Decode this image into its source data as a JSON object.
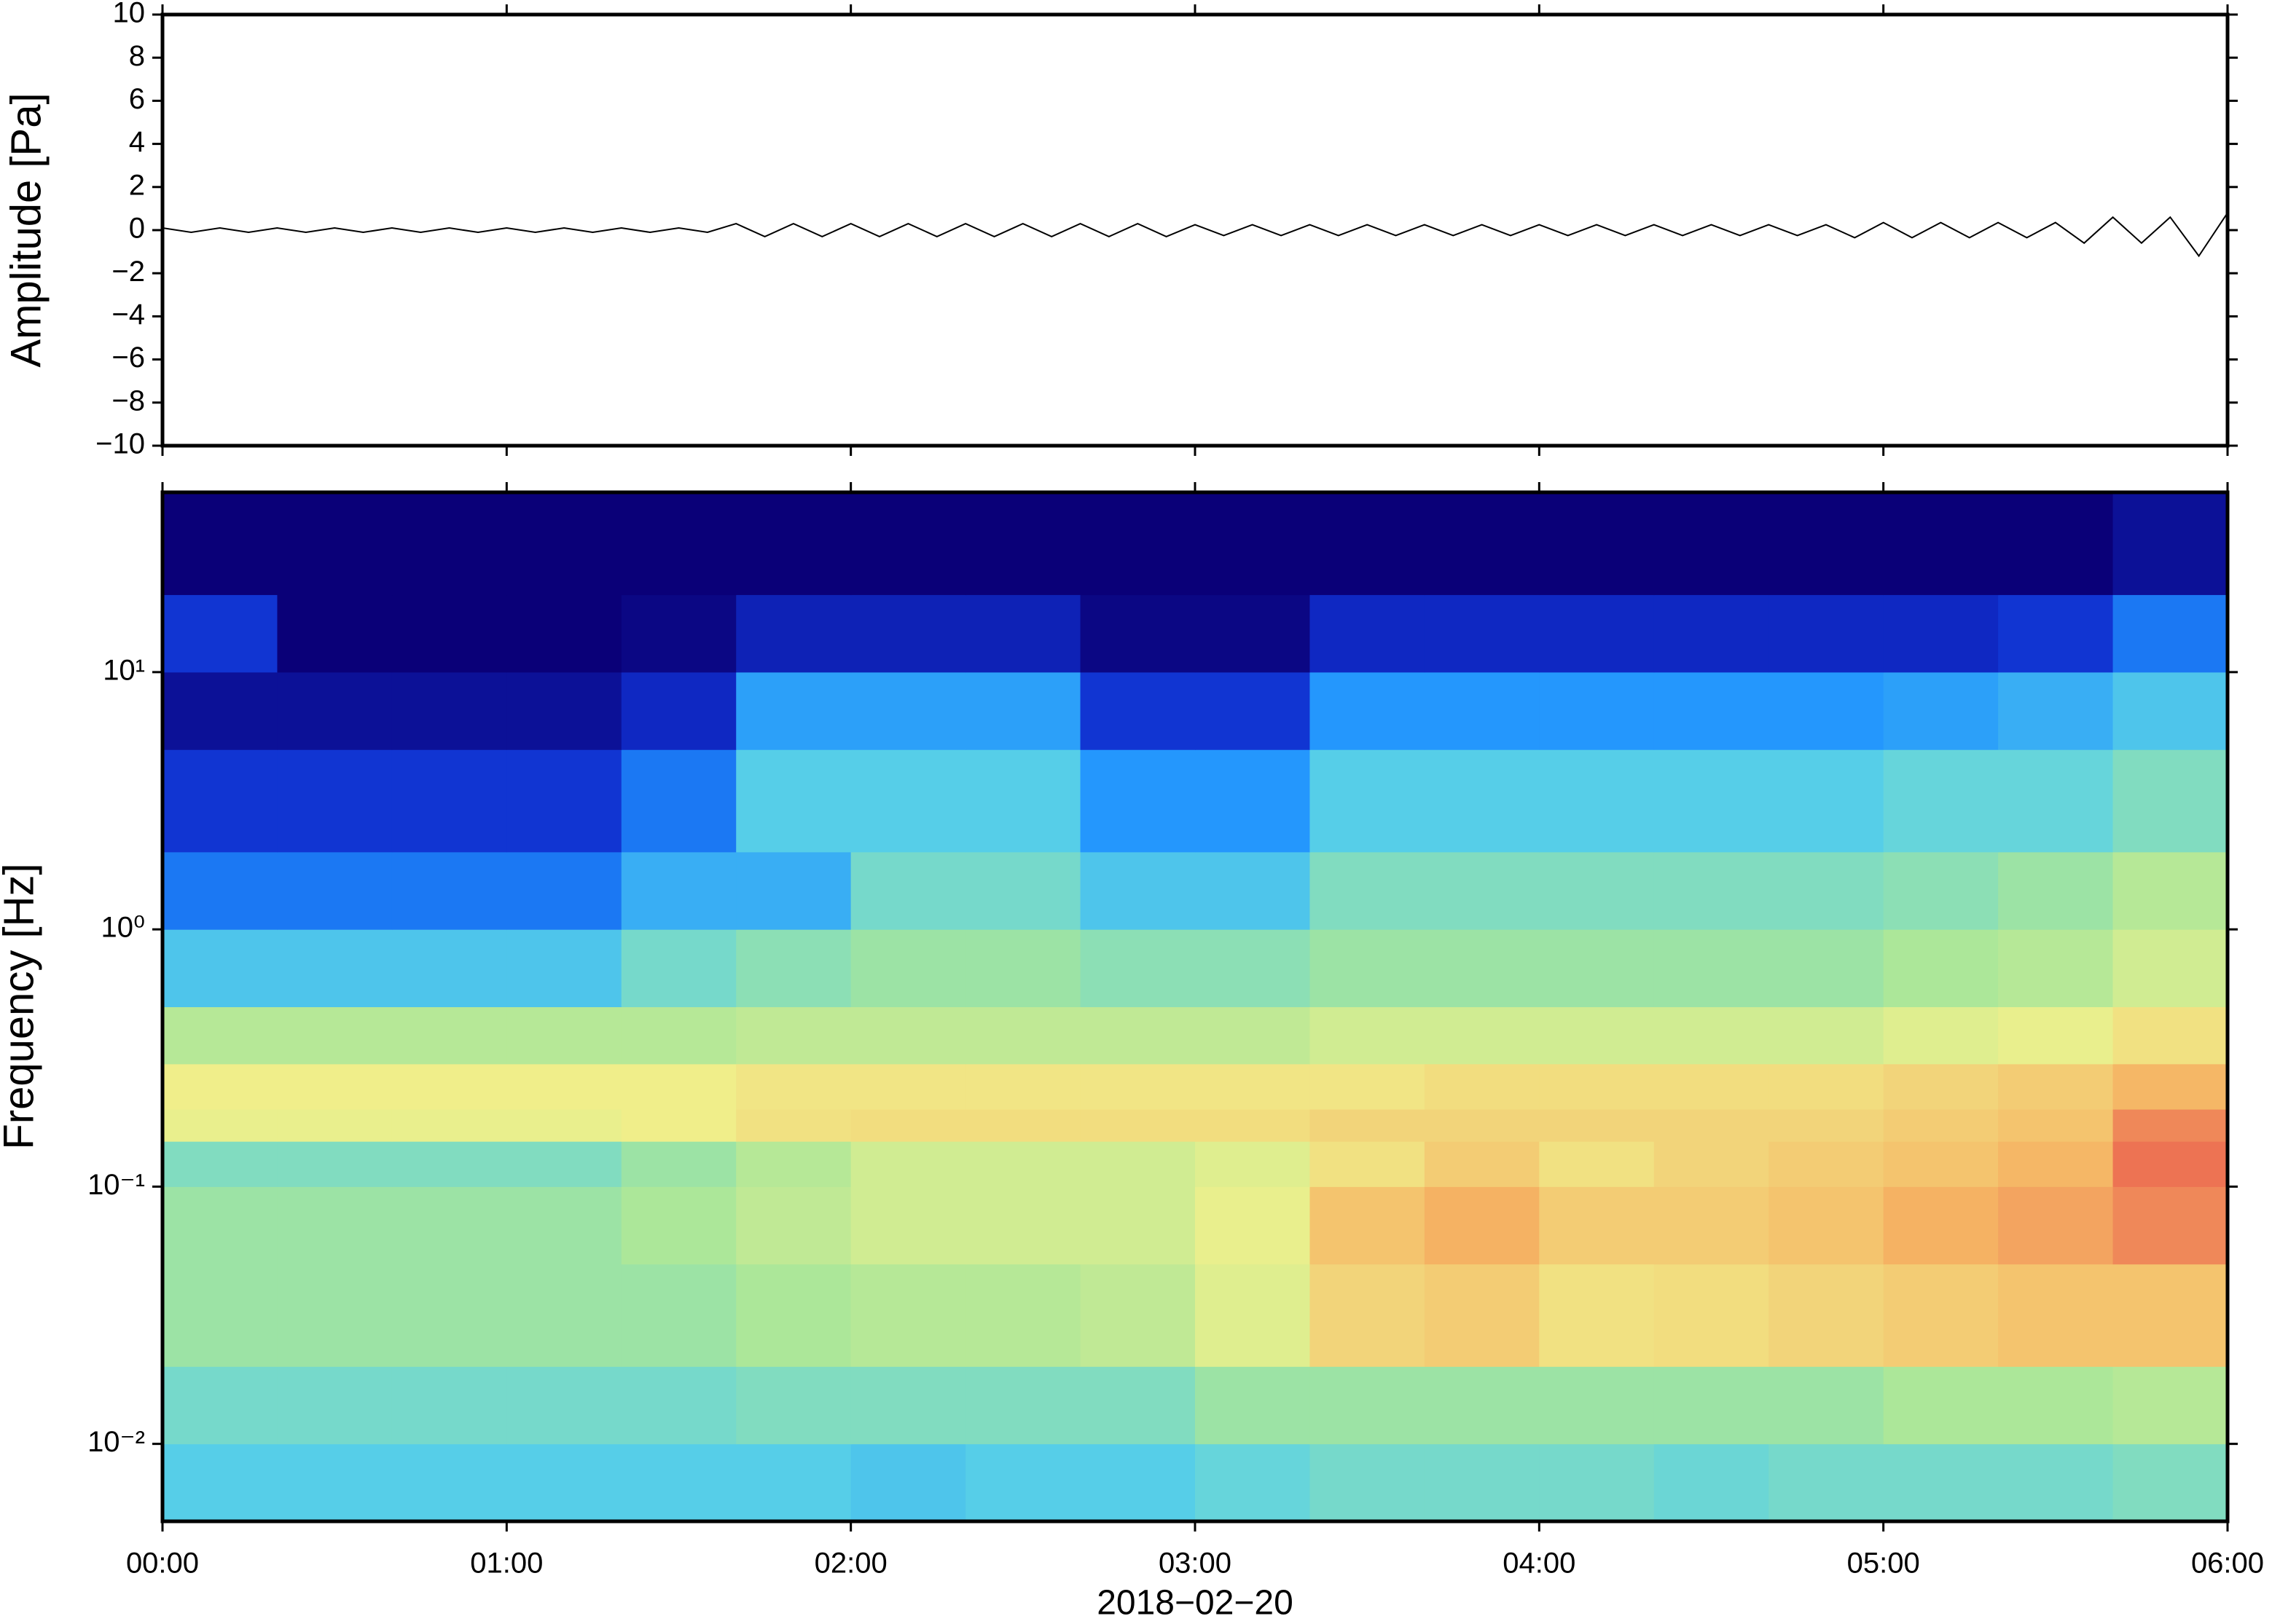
{
  "chart_data": [
    {
      "type": "line",
      "ylabel": "Amplitude [Pa]",
      "color": "#000000",
      "xlim": [
        0,
        360
      ],
      "xticks": [
        0,
        60,
        120,
        180,
        240,
        300,
        360
      ],
      "ylim": [
        -10,
        10
      ],
      "yticks": [
        {
          "value": -10,
          "label": "−10"
        },
        {
          "value": -8,
          "label": "−8"
        },
        {
          "value": -6,
          "label": "−6"
        },
        {
          "value": -4,
          "label": "−4"
        },
        {
          "value": -2,
          "label": "−2"
        },
        0,
        2,
        4,
        6,
        8,
        10
      ],
      "x": [
        0,
        5,
        10,
        15,
        20,
        25,
        30,
        35,
        40,
        45,
        50,
        55,
        60,
        65,
        70,
        75,
        80,
        85,
        90,
        95,
        100,
        105,
        110,
        115,
        120,
        125,
        130,
        135,
        140,
        145,
        150,
        155,
        160,
        165,
        170,
        175,
        180,
        185,
        190,
        195,
        200,
        205,
        210,
        215,
        220,
        225,
        230,
        235,
        240,
        245,
        250,
        255,
        260,
        265,
        270,
        275,
        280,
        285,
        290,
        295,
        300,
        305,
        310,
        315,
        320,
        325,
        330,
        335,
        340,
        345,
        350,
        355,
        360
      ],
      "values": [
        0.1,
        -0.1,
        0.1,
        -0.1,
        0.1,
        -0.1,
        0.1,
        -0.1,
        0.1,
        -0.1,
        0.1,
        -0.1,
        0.1,
        -0.1,
        0.1,
        -0.1,
        0.1,
        -0.1,
        0.1,
        -0.1,
        0.3,
        -0.3,
        0.3,
        -0.3,
        0.3,
        -0.3,
        0.3,
        -0.3,
        0.3,
        -0.3,
        0.3,
        -0.3,
        0.3,
        -0.3,
        0.3,
        -0.3,
        0.25,
        -0.25,
        0.25,
        -0.25,
        0.25,
        -0.25,
        0.25,
        -0.25,
        0.25,
        -0.25,
        0.25,
        -0.25,
        0.25,
        -0.25,
        0.25,
        -0.25,
        0.25,
        -0.25,
        0.25,
        -0.25,
        0.25,
        -0.25,
        0.25,
        -0.35,
        0.35,
        -0.35,
        0.35,
        -0.35,
        0.35,
        -0.35,
        0.35,
        -0.6,
        0.6,
        -0.6,
        0.6,
        -1.2,
        0.8
      ]
    },
    {
      "type": "heatmap",
      "ylabel": "Frequency [Hz]",
      "xlabel": "2018−02−20",
      "log_y": true,
      "xlim": [
        0,
        360
      ],
      "xticks": [
        {
          "value": 0,
          "label": "00:00"
        },
        {
          "value": 60,
          "label": "01:00"
        },
        {
          "value": 120,
          "label": "02:00"
        },
        {
          "value": 180,
          "label": "03:00"
        },
        {
          "value": 240,
          "label": "04:00"
        },
        {
          "value": 300,
          "label": "05:00"
        },
        {
          "value": 360,
          "label": "06:00"
        }
      ],
      "ylim": [
        0.005,
        50
      ],
      "yticks": [
        {
          "value": 0.01,
          "label": "10⁻²"
        },
        {
          "value": 0.1,
          "label": "10⁻¹"
        },
        {
          "value": 1,
          "label": "10⁰"
        },
        {
          "value": 10,
          "label": "10¹"
        }
      ],
      "x_bins": [
        0,
        20,
        40,
        60,
        80,
        100,
        120,
        140,
        160,
        180,
        200,
        220,
        240,
        260,
        280,
        300,
        320,
        340,
        360
      ],
      "y_bins": [
        0.005,
        0.01,
        0.02,
        0.05,
        0.1,
        0.15,
        0.2,
        0.3,
        0.5,
        1,
        2,
        5,
        10,
        20,
        50
      ],
      "zlim": [
        0,
        1
      ],
      "colormap": [
        "#0a0078",
        "#1030d0",
        "#1e90ff",
        "#5ad2e6",
        "#a8e69a",
        "#f0f08c",
        "#f5b464",
        "#e8504a"
      ],
      "z": [
        [
          0.42,
          0.42,
          0.42,
          0.42,
          0.42,
          0.42,
          0.4,
          0.42,
          0.42,
          0.45,
          0.48,
          0.48,
          0.48,
          0.46,
          0.48,
          0.48,
          0.48,
          0.5
        ],
        [
          0.48,
          0.48,
          0.48,
          0.48,
          0.48,
          0.5,
          0.5,
          0.5,
          0.5,
          0.55,
          0.55,
          0.55,
          0.55,
          0.55,
          0.55,
          0.58,
          0.58,
          0.6
        ],
        [
          0.55,
          0.55,
          0.55,
          0.55,
          0.55,
          0.58,
          0.6,
          0.6,
          0.62,
          0.68,
          0.78,
          0.8,
          0.75,
          0.76,
          0.78,
          0.8,
          0.82,
          0.82
        ],
        [
          0.55,
          0.55,
          0.55,
          0.55,
          0.58,
          0.62,
          0.65,
          0.65,
          0.65,
          0.7,
          0.82,
          0.86,
          0.8,
          0.8,
          0.82,
          0.86,
          0.88,
          0.92
        ],
        [
          0.5,
          0.5,
          0.5,
          0.5,
          0.55,
          0.6,
          0.65,
          0.65,
          0.65,
          0.68,
          0.75,
          0.8,
          0.75,
          0.78,
          0.8,
          0.82,
          0.85,
          0.95
        ],
        [
          0.7,
          0.7,
          0.7,
          0.7,
          0.72,
          0.75,
          0.76,
          0.76,
          0.76,
          0.76,
          0.78,
          0.78,
          0.78,
          0.78,
          0.78,
          0.8,
          0.82,
          0.92
        ],
        [
          0.72,
          0.72,
          0.72,
          0.72,
          0.72,
          0.74,
          0.74,
          0.74,
          0.74,
          0.74,
          0.74,
          0.76,
          0.76,
          0.76,
          0.76,
          0.78,
          0.8,
          0.85
        ],
        [
          0.6,
          0.6,
          0.6,
          0.6,
          0.6,
          0.62,
          0.62,
          0.62,
          0.62,
          0.62,
          0.65,
          0.65,
          0.65,
          0.65,
          0.65,
          0.68,
          0.7,
          0.75
        ],
        [
          0.4,
          0.4,
          0.4,
          0.4,
          0.48,
          0.52,
          0.55,
          0.55,
          0.52,
          0.52,
          0.55,
          0.55,
          0.55,
          0.55,
          0.55,
          0.58,
          0.6,
          0.65
        ],
        [
          0.25,
          0.25,
          0.25,
          0.25,
          0.35,
          0.35,
          0.48,
          0.48,
          0.4,
          0.4,
          0.5,
          0.5,
          0.5,
          0.5,
          0.5,
          0.52,
          0.55,
          0.6
        ],
        [
          0.15,
          0.15,
          0.15,
          0.15,
          0.25,
          0.42,
          0.42,
          0.42,
          0.3,
          0.3,
          0.42,
          0.42,
          0.42,
          0.42,
          0.42,
          0.45,
          0.45,
          0.5
        ],
        [
          0.05,
          0.05,
          0.05,
          0.05,
          0.12,
          0.32,
          0.32,
          0.32,
          0.15,
          0.15,
          0.3,
          0.3,
          0.3,
          0.3,
          0.3,
          0.32,
          0.35,
          0.4
        ],
        [
          0.15,
          0,
          0,
          0,
          0.02,
          0.1,
          0.1,
          0.1,
          0.02,
          0.02,
          0.12,
          0.12,
          0.12,
          0.12,
          0.12,
          0.12,
          0.15,
          0.25
        ],
        [
          0,
          0,
          0,
          0,
          0,
          0,
          0,
          0,
          0,
          0,
          0,
          0,
          0,
          0,
          0,
          0,
          0,
          0.05
        ]
      ]
    }
  ]
}
